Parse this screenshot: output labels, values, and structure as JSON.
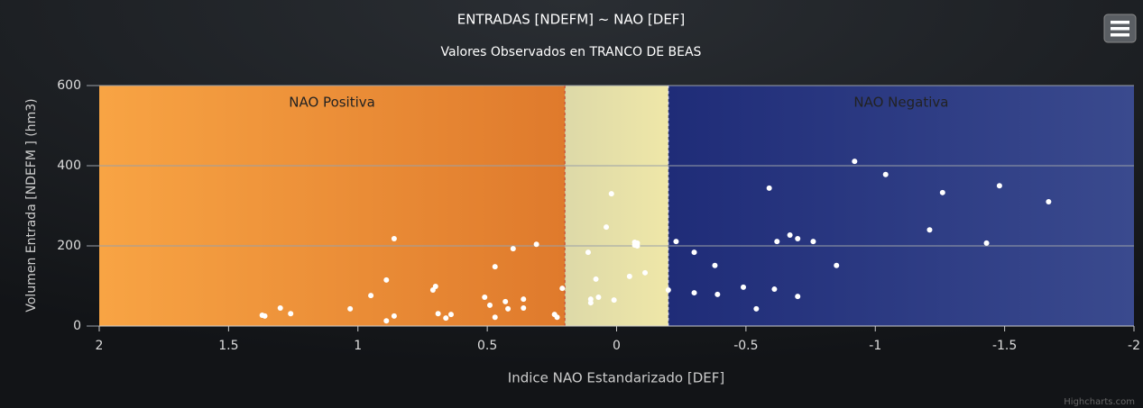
{
  "chart_data": {
    "type": "scatter",
    "title": "ENTRADAS [NDEFM] ~ NAO [DEF]",
    "subtitle": "Valores Observados en TRANCO DE BEAS",
    "x_label": "Indice NAO Estandarizado [DEF]",
    "y_label": "Volumen Entrada [NDEFM ] (hm3)",
    "credit": "Highcharts.com",
    "color": "#ffffff",
    "xlim": [
      2,
      -2
    ],
    "xticks": [
      2,
      1.5,
      1,
      0.5,
      0,
      -0.5,
      -1,
      -1.5,
      -2
    ],
    "ylim": [
      0,
      600
    ],
    "yticks": [
      0,
      200,
      400,
      600
    ],
    "grid": true,
    "plot_bands": [
      {
        "from": 2,
        "to": 0.2,
        "label": "NAO Positiva",
        "colors": [
          "#f8a444",
          "#df7a2c"
        ]
      },
      {
        "from": 0.2,
        "to": -0.2,
        "colors": [
          "#ddd9a8",
          "#efe7a8"
        ]
      },
      {
        "from": -0.2,
        "to": -2,
        "label": "NAO Negativa",
        "colors": [
          "#1f2c78",
          "#3a4a8e"
        ]
      }
    ],
    "plot_lines": [
      {
        "value": 0.2,
        "color": "#c0392b"
      },
      {
        "value": -0.2,
        "color": "#d8d8f0"
      }
    ],
    "x": [
      1.37,
      1.36,
      1.3,
      1.26,
      1.03,
      0.95,
      0.89,
      0.89,
      0.86,
      0.86,
      0.71,
      0.7,
      0.69,
      0.66,
      0.64,
      0.51,
      0.49,
      0.47,
      0.47,
      0.43,
      0.42,
      0.4,
      0.36,
      0.36,
      0.31,
      0.24,
      0.23,
      0.21,
      0.11,
      0.1,
      0.1,
      0.08,
      0.07,
      0.04,
      0.02,
      0.01,
      -0.05,
      -0.07,
      -0.07,
      -0.08,
      -0.08,
      -0.11,
      -0.2,
      -0.23,
      -0.3,
      -0.3,
      -0.38,
      -0.39,
      -0.49,
      -0.54,
      -0.59,
      -0.61,
      -0.62,
      -0.67,
      -0.7,
      -0.7,
      -0.76,
      -0.85,
      -0.92,
      -1.04,
      -1.21,
      -1.26,
      -1.43,
      -1.48,
      -1.67
    ],
    "values": [
      27,
      25,
      45,
      31,
      43,
      76,
      115,
      13,
      218,
      25,
      90,
      99,
      31,
      20,
      29,
      72,
      52,
      148,
      22,
      61,
      43,
      193,
      67,
      45,
      204,
      29,
      22,
      94,
      184,
      58,
      67,
      117,
      72,
      247,
      330,
      65,
      124,
      202,
      209,
      207,
      200,
      133,
      90,
      211,
      184,
      83,
      151,
      79,
      97,
      43,
      344,
      92,
      211,
      227,
      218,
      74,
      211,
      151,
      411,
      378,
      240,
      333,
      207,
      350,
      310
    ]
  }
}
